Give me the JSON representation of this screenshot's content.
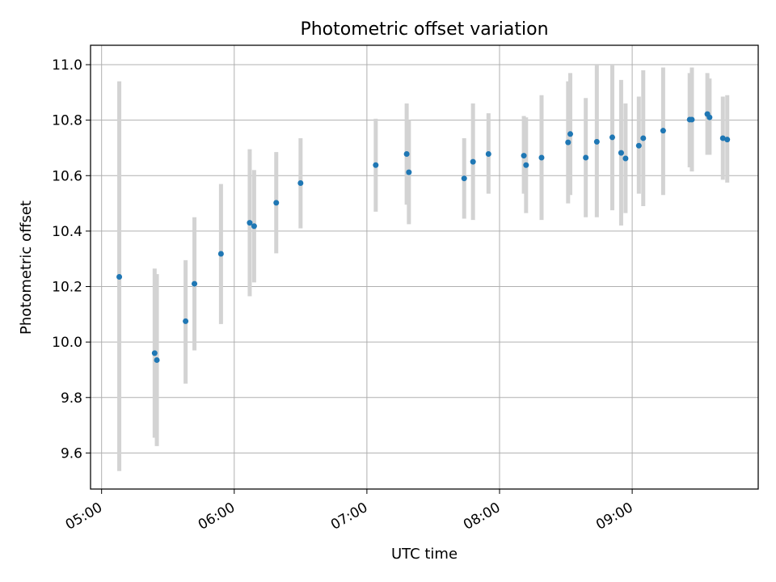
{
  "chart_data": {
    "type": "scatter",
    "title": "Photometric offset variation",
    "xlabel": "UTC time",
    "ylabel": "Photometric offset",
    "xlim": [
      "04:55",
      "09:57"
    ],
    "ylim": [
      9.47,
      11.07
    ],
    "xticks": [
      "05:00",
      "06:00",
      "07:00",
      "08:00",
      "09:00"
    ],
    "yticks": [
      "9.6",
      "9.8",
      "10.0",
      "10.2",
      "10.4",
      "10.6",
      "10.8",
      "11.0"
    ],
    "grid": true,
    "colors": {
      "point": "#1f77b4",
      "errorbar": "#d3d3d3",
      "grid": "#b0b0b0"
    },
    "points": [
      {
        "t": "05:08",
        "y": 10.235,
        "ylo": 9.535,
        "yhi": 10.94
      },
      {
        "t": "05:24",
        "y": 9.96,
        "ylo": 9.655,
        "yhi": 10.265
      },
      {
        "t": "05:25",
        "y": 9.935,
        "ylo": 9.625,
        "yhi": 10.245
      },
      {
        "t": "05:38",
        "y": 10.075,
        "ylo": 9.85,
        "yhi": 10.295
      },
      {
        "t": "05:42",
        "y": 10.21,
        "ylo": 9.97,
        "yhi": 10.45
      },
      {
        "t": "05:54",
        "y": 10.318,
        "ylo": 10.065,
        "yhi": 10.57
      },
      {
        "t": "06:07",
        "y": 10.43,
        "ylo": 10.165,
        "yhi": 10.695
      },
      {
        "t": "06:09",
        "y": 10.418,
        "ylo": 10.215,
        "yhi": 10.62
      },
      {
        "t": "06:19",
        "y": 10.502,
        "ylo": 10.32,
        "yhi": 10.685
      },
      {
        "t": "06:30",
        "y": 10.573,
        "ylo": 10.41,
        "yhi": 10.735
      },
      {
        "t": "07:04",
        "y": 10.638,
        "ylo": 10.47,
        "yhi": 10.805
      },
      {
        "t": "07:18",
        "y": 10.678,
        "ylo": 10.495,
        "yhi": 10.86
      },
      {
        "t": "07:19",
        "y": 10.612,
        "ylo": 10.425,
        "yhi": 10.8
      },
      {
        "t": "07:44",
        "y": 10.59,
        "ylo": 10.445,
        "yhi": 10.735
      },
      {
        "t": "07:48",
        "y": 10.65,
        "ylo": 10.44,
        "yhi": 10.86
      },
      {
        "t": "07:55",
        "y": 10.678,
        "ylo": 10.535,
        "yhi": 10.825
      },
      {
        "t": "08:11",
        "y": 10.672,
        "ylo": 10.535,
        "yhi": 10.815
      },
      {
        "t": "08:12",
        "y": 10.638,
        "ylo": 10.465,
        "yhi": 10.81
      },
      {
        "t": "08:19",
        "y": 10.665,
        "ylo": 10.44,
        "yhi": 10.89
      },
      {
        "t": "08:31",
        "y": 10.72,
        "ylo": 10.5,
        "yhi": 10.94
      },
      {
        "t": "08:32",
        "y": 10.75,
        "ylo": 10.53,
        "yhi": 10.97
      },
      {
        "t": "08:39",
        "y": 10.665,
        "ylo": 10.45,
        "yhi": 10.88
      },
      {
        "t": "08:44",
        "y": 10.722,
        "ylo": 10.45,
        "yhi": 11.0
      },
      {
        "t": "08:51",
        "y": 10.738,
        "ylo": 10.475,
        "yhi": 11.0
      },
      {
        "t": "08:55",
        "y": 10.682,
        "ylo": 10.42,
        "yhi": 10.945
      },
      {
        "t": "08:57",
        "y": 10.662,
        "ylo": 10.465,
        "yhi": 10.86
      },
      {
        "t": "09:03",
        "y": 10.708,
        "ylo": 10.535,
        "yhi": 10.885
      },
      {
        "t": "09:05",
        "y": 10.735,
        "ylo": 10.49,
        "yhi": 10.98
      },
      {
        "t": "09:14",
        "y": 10.762,
        "ylo": 10.53,
        "yhi": 10.99
      },
      {
        "t": "09:26",
        "y": 10.802,
        "ylo": 10.63,
        "yhi": 10.97
      },
      {
        "t": "09:27",
        "y": 10.802,
        "ylo": 10.615,
        "yhi": 10.99
      },
      {
        "t": "09:34",
        "y": 10.822,
        "ylo": 10.675,
        "yhi": 10.97
      },
      {
        "t": "09:35",
        "y": 10.81,
        "ylo": 10.675,
        "yhi": 10.95
      },
      {
        "t": "09:41",
        "y": 10.735,
        "ylo": 10.585,
        "yhi": 10.885
      },
      {
        "t": "09:43",
        "y": 10.73,
        "ylo": 10.575,
        "yhi": 10.89
      }
    ]
  }
}
